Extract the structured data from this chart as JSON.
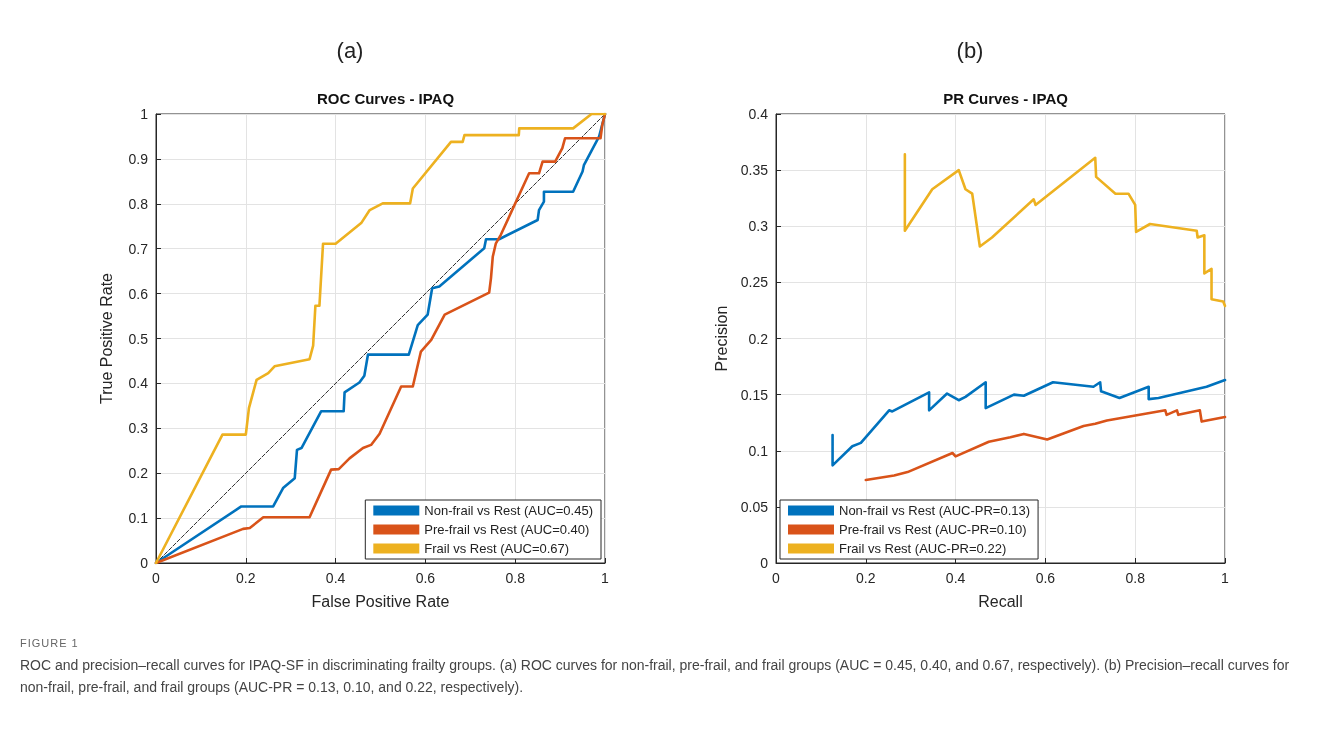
{
  "chart_data": [
    {
      "type": "line",
      "subtitle": "(a)",
      "title": "ROC Curves - IPAQ",
      "xlabel": "False Positive Rate",
      "ylabel": "True Positive Rate",
      "xlim": [
        0,
        1
      ],
      "ylim": [
        0,
        1
      ],
      "xticks": [
        0,
        0.2,
        0.4,
        0.6,
        0.8,
        1
      ],
      "yticks": [
        0,
        0.1,
        0.2,
        0.3,
        0.4,
        0.5,
        0.6,
        0.7,
        0.8,
        0.9,
        1
      ],
      "grid": true,
      "legend": "bottom right",
      "marker": "none",
      "line_style": "solid",
      "annotations": [
        "FIGURE 1",
        "ROC and precision–recall curves for IPAQ-SF in discriminating frailty groups. (a) ROC curves for non-frail, pre-frail, and frail groups (AUC = 0.45, 0.40, and 0.67, respectively). (b) Precision–recall curves for non-frail, pre-frail, and frail groups (AUC-PR = 0.13, 0.10, and 0.22, respectively)."
      ],
      "series": [
        {
          "name": "Non-frail vs Rest (AUC=0.45)",
          "color": "#0072bd",
          "x": [
            0,
            0.19,
            0.261,
            0.283,
            0.309,
            0.314,
            0.324,
            0.368,
            0.418,
            0.42,
            0.453,
            0.464,
            0.472,
            0.563,
            0.583,
            0.605,
            0.615,
            0.631,
            0.731,
            0.735,
            0.764,
            0.85,
            0.853,
            0.864,
            0.864,
            0.929,
            0.95,
            0.953,
            0.987,
            1
          ],
          "values": [
            0,
            0.126,
            0.126,
            0.167,
            0.189,
            0.252,
            0.256,
            0.338,
            0.338,
            0.38,
            0.402,
            0.417,
            0.464,
            0.464,
            0.53,
            0.553,
            0.612,
            0.616,
            0.701,
            0.721,
            0.721,
            0.764,
            0.786,
            0.805,
            0.827,
            0.827,
            0.872,
            0.886,
            0.95,
            1
          ]
        },
        {
          "name": "Pre-frail vs Rest (AUC=0.40)",
          "color": "#d95319",
          "x": [
            0,
            0.194,
            0.209,
            0.239,
            0.342,
            0.39,
            0.407,
            0.431,
            0.461,
            0.479,
            0.498,
            0.546,
            0.572,
            0.59,
            0.613,
            0.643,
            0.742,
            0.746,
            0.75,
            0.757,
            0.768,
            0.831,
            0.853,
            0.861,
            0.889,
            0.905,
            0.911,
            0.99,
            0.994,
            1
          ],
          "values": [
            0,
            0.076,
            0.078,
            0.102,
            0.102,
            0.208,
            0.209,
            0.233,
            0.256,
            0.263,
            0.288,
            0.393,
            0.393,
            0.471,
            0.497,
            0.553,
            0.602,
            0.634,
            0.682,
            0.712,
            0.731,
            0.868,
            0.868,
            0.894,
            0.894,
            0.924,
            0.946,
            0.946,
            0.976,
            1
          ]
        },
        {
          "name": "Frail vs Rest (AUC=0.67)",
          "color": "#edb120",
          "x": [
            0,
            0.148,
            0.2,
            0.207,
            0.224,
            0.25,
            0.264,
            0.342,
            0.35,
            0.355,
            0.364,
            0.372,
            0.4,
            0.457,
            0.476,
            0.505,
            0.566,
            0.572,
            0.657,
            0.683,
            0.687,
            0.808,
            0.809,
            0.929,
            0.97,
            1
          ],
          "values": [
            0,
            0.286,
            0.286,
            0.345,
            0.408,
            0.423,
            0.438,
            0.454,
            0.484,
            0.573,
            0.573,
            0.711,
            0.711,
            0.757,
            0.786,
            0.801,
            0.801,
            0.834,
            0.938,
            0.938,
            0.953,
            0.953,
            0.968,
            0.968,
            1,
            1
          ]
        },
        {
          "color": "#333333",
          "line_style": "dashed",
          "x": [
            0,
            1
          ],
          "values": [
            0,
            1
          ]
        }
      ]
    },
    {
      "type": "line",
      "subtitle": "(b)",
      "title": "PR Curves - IPAQ",
      "xlabel": "Recall",
      "ylabel": "Precision",
      "xlim": [
        0,
        1
      ],
      "ylim": [
        0,
        0.4
      ],
      "xticks": [
        0,
        0.2,
        0.4,
        0.6,
        0.8,
        1
      ],
      "yticks": [
        0,
        0.05,
        0.1,
        0.15,
        0.2,
        0.25,
        0.3,
        0.35,
        0.4
      ],
      "grid": true,
      "legend": "bottom left",
      "marker": "none",
      "line_style": "solid",
      "series": [
        {
          "name": "Non-frail vs Rest (AUC-PR=0.13)",
          "color": "#0072bd",
          "x": [
            0.126,
            0.126,
            0.17,
            0.189,
            0.252,
            0.259,
            0.341,
            0.341,
            0.381,
            0.407,
            0.422,
            0.467,
            0.467,
            0.53,
            0.552,
            0.617,
            0.707,
            0.722,
            0.724,
            0.765,
            0.83,
            0.83,
            0.852,
            0.959,
            1
          ],
          "values": [
            0.114,
            0.087,
            0.104,
            0.107,
            0.136,
            0.135,
            0.152,
            0.136,
            0.151,
            0.145,
            0.148,
            0.161,
            0.138,
            0.15,
            0.149,
            0.161,
            0.157,
            0.161,
            0.153,
            0.147,
            0.157,
            0.146,
            0.147,
            0.157,
            0.163
          ]
        },
        {
          "name": "Pre-frail vs Rest (AUC-PR=0.10)",
          "color": "#d95319",
          "x": [
            0.2,
            0.263,
            0.293,
            0.393,
            0.4,
            0.474,
            0.522,
            0.552,
            0.604,
            0.685,
            0.711,
            0.737,
            0.867,
            0.87,
            0.893,
            0.896,
            0.944,
            0.948,
            1
          ],
          "values": [
            0.074,
            0.078,
            0.081,
            0.098,
            0.095,
            0.108,
            0.112,
            0.115,
            0.11,
            0.122,
            0.124,
            0.127,
            0.136,
            0.132,
            0.136,
            0.132,
            0.136,
            0.126,
            0.13
          ]
        },
        {
          "name": "Frail vs Rest (AUC-PR=0.22)",
          "color": "#edb120",
          "x": [
            0.287,
            0.287,
            0.348,
            0.407,
            0.422,
            0.437,
            0.454,
            0.481,
            0.574,
            0.578,
            0.711,
            0.713,
            0.756,
            0.785,
            0.8,
            0.802,
            0.833,
            0.937,
            0.939,
            0.954,
            0.954,
            0.97,
            0.97,
            0.996,
            1
          ],
          "values": [
            0.364,
            0.296,
            0.333,
            0.35,
            0.333,
            0.329,
            0.282,
            0.29,
            0.324,
            0.319,
            0.361,
            0.344,
            0.329,
            0.329,
            0.319,
            0.295,
            0.302,
            0.296,
            0.29,
            0.292,
            0.258,
            0.262,
            0.235,
            0.233,
            0.229
          ]
        }
      ]
    }
  ]
}
